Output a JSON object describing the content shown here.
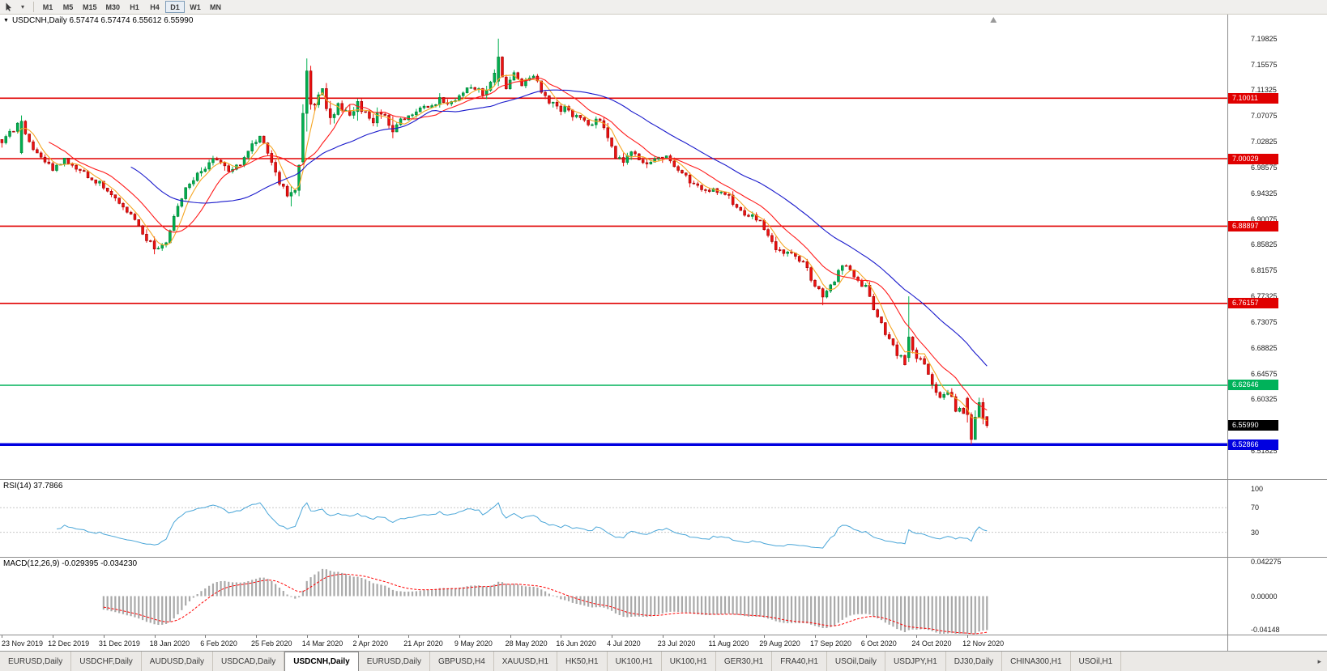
{
  "toolbar": {
    "timeframes": [
      "M1",
      "M5",
      "M15",
      "M30",
      "H1",
      "H4",
      "D1",
      "W1",
      "MN"
    ],
    "active_timeframe": "D1"
  },
  "chart_header": "USDCNH,Daily 6.57474 6.57474 6.55612 6.55990",
  "panels": {
    "rsi_label": "RSI(14) 37.7866",
    "macd_label": "MACD(12,26,9) -0.029395 -0.034230"
  },
  "tabs": {
    "items": [
      "EURUSD,Daily",
      "USDCHF,Daily",
      "AUDUSD,Daily",
      "USDCAD,Daily",
      "USDCNH,Daily",
      "EURUSD,Daily",
      "GBPUSD,H4",
      "XAUUSD,H1",
      "HK50,H1",
      "UK100,H1",
      "UK100,H1",
      "GER30,H1",
      "FRA40,H1",
      "USOil,Daily",
      "USDJPY,H1",
      "DJ30,Daily",
      "CHINA300,H1",
      "USOil,H1"
    ],
    "active_index": 4,
    "active_tab": "USDCNH,Daily",
    "scroll_right_icon": "▸"
  },
  "chart_data": {
    "type": "candlestick",
    "symbol": "USDCNH",
    "timeframe": "Daily",
    "ohlc": {
      "open": "6.57474",
      "high": "6.57474",
      "low": "6.55612",
      "close": "6.55990"
    },
    "price_axis": {
      "max": 7.238,
      "min": 6.4715,
      "ticks": [
        "7.19825",
        "7.15575",
        "7.11325",
        "7.07075",
        "7.02825",
        "6.98575",
        "6.94325",
        "6.90075",
        "6.85825",
        "6.81575",
        "6.77325",
        "6.73075",
        "6.68825",
        "6.64575",
        "6.60325",
        "6.56075",
        "6.51825"
      ]
    },
    "hlines": [
      {
        "price": 7.10011,
        "label": "7.10011",
        "color": "#e00000",
        "thickness": 1.6
      },
      {
        "price": 7.00029,
        "label": "7.00029",
        "color": "#e00000",
        "thickness": 1.6
      },
      {
        "price": 6.88897,
        "label": "6.88897",
        "color": "#e00000",
        "thickness": 1.6
      },
      {
        "price": 6.76157,
        "label": "6.76157",
        "color": "#e00000",
        "thickness": 1.6
      },
      {
        "price": 6.62646,
        "label": "6.62646",
        "color": "#00b25a",
        "thickness": 1.6
      },
      {
        "price": 6.52866,
        "label": "6.52866",
        "color": "#0000e0",
        "thickness": 3.5
      }
    ],
    "current_price": {
      "label": "6.55990",
      "value": 6.5599,
      "bg": "#000000"
    },
    "x_axis": {
      "labels": [
        "23 Nov 2019",
        "12 Dec 2019",
        "31 Dec 2019",
        "18 Jan 2020",
        "6 Feb 2020",
        "25 Feb 2020",
        "14 Mar 2020",
        "2 Apr 2020",
        "21 Apr 2020",
        "9 May 2020",
        "28 May 2020",
        "16 Jun 2020",
        "4 Jul 2020",
        "23 Jul 2020",
        "11 Aug 2020",
        "29 Aug 2020",
        "17 Sep 2020",
        "6 Oct 2020",
        "24 Oct 2020",
        "12 Nov 2020"
      ],
      "label_step": 13,
      "total_slots": 314,
      "num_candles": 253
    },
    "price_path": [
      [
        0,
        7.032
      ],
      [
        2,
        7.045
      ],
      [
        4,
        7.052
      ],
      [
        6,
        7.038
      ],
      [
        9,
        7.012
      ],
      [
        13,
        6.982
      ],
      [
        16,
        6.999
      ],
      [
        19,
        6.982
      ],
      [
        23,
        6.968
      ],
      [
        26,
        6.952
      ],
      [
        30,
        6.928
      ],
      [
        34,
        6.9
      ],
      [
        37,
        6.868
      ],
      [
        40,
        6.852
      ],
      [
        42,
        6.858
      ],
      [
        44,
        6.905
      ],
      [
        47,
        6.955
      ],
      [
        50,
        6.975
      ],
      [
        52,
        6.988
      ],
      [
        55,
        7.002
      ],
      [
        58,
        6.978
      ],
      [
        61,
        6.988
      ],
      [
        64,
        7.022
      ],
      [
        66,
        7.038
      ],
      [
        68,
        7.012
      ],
      [
        70,
        6.978
      ],
      [
        73,
        6.938
      ],
      [
        75,
        6.948
      ],
      [
        77,
        7.02
      ],
      [
        78,
        7.125
      ],
      [
        80,
        7.085
      ],
      [
        82,
        7.115
      ],
      [
        84,
        7.06
      ],
      [
        86,
        7.095
      ],
      [
        88,
        7.075
      ],
      [
        91,
        7.092
      ],
      [
        94,
        7.062
      ],
      [
        97,
        7.072
      ],
      [
        100,
        7.052
      ],
      [
        104,
        7.072
      ],
      [
        108,
        7.082
      ],
      [
        112,
        7.095
      ],
      [
        116,
        7.098
      ],
      [
        120,
        7.122
      ],
      [
        123,
        7.108
      ],
      [
        126,
        7.135
      ],
      [
        127,
        7.155
      ],
      [
        129,
        7.118
      ],
      [
        131,
        7.142
      ],
      [
        133,
        7.122
      ],
      [
        136,
        7.135
      ],
      [
        139,
        7.1
      ],
      [
        143,
        7.082
      ],
      [
        147,
        7.072
      ],
      [
        150,
        7.058
      ],
      [
        153,
        7.062
      ],
      [
        155,
        7.042
      ],
      [
        157,
        7.005
      ],
      [
        159,
        6.995
      ],
      [
        161,
        7.008
      ],
      [
        164,
        6.992
      ],
      [
        167,
        7.002
      ],
      [
        170,
        7.005
      ],
      [
        173,
        6.982
      ],
      [
        176,
        6.962
      ],
      [
        179,
        6.952
      ],
      [
        182,
        6.952
      ],
      [
        185,
        6.942
      ],
      [
        188,
        6.918
      ],
      [
        191,
        6.905
      ],
      [
        194,
        6.895
      ],
      [
        197,
        6.862
      ],
      [
        200,
        6.848
      ],
      [
        203,
        6.842
      ],
      [
        206,
        6.818
      ],
      [
        208,
        6.792
      ],
      [
        210,
        6.772
      ],
      [
        212,
        6.788
      ],
      [
        214,
        6.818
      ],
      [
        216,
        6.826
      ],
      [
        218,
        6.802
      ],
      [
        221,
        6.788
      ],
      [
        223,
        6.752
      ],
      [
        225,
        6.728
      ],
      [
        227,
        6.705
      ],
      [
        229,
        6.682
      ],
      [
        231,
        6.662
      ],
      [
        232,
        6.698
      ],
      [
        234,
        6.675
      ],
      [
        236,
        6.658
      ],
      [
        238,
        6.632
      ],
      [
        240,
        6.602
      ],
      [
        242,
        6.618
      ],
      [
        244,
        6.588
      ],
      [
        246,
        6.578
      ],
      [
        247,
        6.598
      ],
      [
        248,
        6.542
      ],
      [
        249,
        6.572
      ],
      [
        250,
        6.596
      ],
      [
        251,
        6.575
      ],
      [
        252,
        6.56
      ]
    ],
    "overrides": {
      "5": {
        "o": 7.01,
        "c": 7.062,
        "h": 7.0715
      },
      "39": {
        "l": 6.8426
      },
      "74": {
        "l": 6.9215
      },
      "77": {
        "o": 6.995,
        "c": 7.075,
        "h": 7.09,
        "l": 6.99
      },
      "78": {
        "o": 7.075,
        "c": 7.145,
        "h": 7.1655,
        "l": 7.045
      },
      "79": {
        "c": 7.09
      },
      "127": {
        "o": 7.128,
        "c": 7.168,
        "h": 7.19825,
        "l": 7.12
      },
      "128": {
        "o": 7.168,
        "c": 7.135
      },
      "210": {
        "l": 6.7585,
        "c": 6.772
      },
      "232": {
        "o": 6.672,
        "c": 6.706,
        "h": 6.7732,
        "l": 6.665
      },
      "247": {
        "o": 6.605,
        "c": 6.578,
        "l": 6.565
      },
      "248": {
        "o": 6.578,
        "c": 6.537,
        "l": 6.52866
      },
      "249": {
        "o": 6.537,
        "c": 6.574,
        "h": 6.585
      },
      "250": {
        "o": 6.574,
        "c": 6.598,
        "h": 6.606
      },
      "251": {
        "o": 6.598,
        "c": 6.571,
        "l": 6.562
      },
      "252": {
        "o": 6.57474,
        "h": 6.57474,
        "l": 6.55612,
        "c": 6.5599
      }
    },
    "moving_averages": [
      {
        "name": "ma-fast-orange",
        "period": 5,
        "color": "#f5a623"
      },
      {
        "name": "ma-mid-red",
        "period": 13,
        "color": "#ff1a1a"
      },
      {
        "name": "ma-slow-blue",
        "period": 34,
        "color": "#1a1acc"
      }
    ],
    "rsi": {
      "period": 14,
      "value": "37.7866",
      "levels": [
        100,
        70,
        30
      ],
      "color": "#4aa6d8"
    },
    "macd": {
      "fast": 12,
      "slow": 26,
      "signal": 9,
      "axis_labels": [
        "0.042275",
        "0.00000",
        "-0.04148"
      ],
      "range": 0.0475,
      "hist_color": "#a9a9a9",
      "signal_color": "#ff0000"
    },
    "colors": {
      "bull": "#00b050",
      "bull_stroke": "#007a30",
      "bear": "#ee1111",
      "bear_stroke": "#990000",
      "background": "#ffffff",
      "separator": "#8c8c8c",
      "axis_text": "#1a1a1a"
    }
  }
}
